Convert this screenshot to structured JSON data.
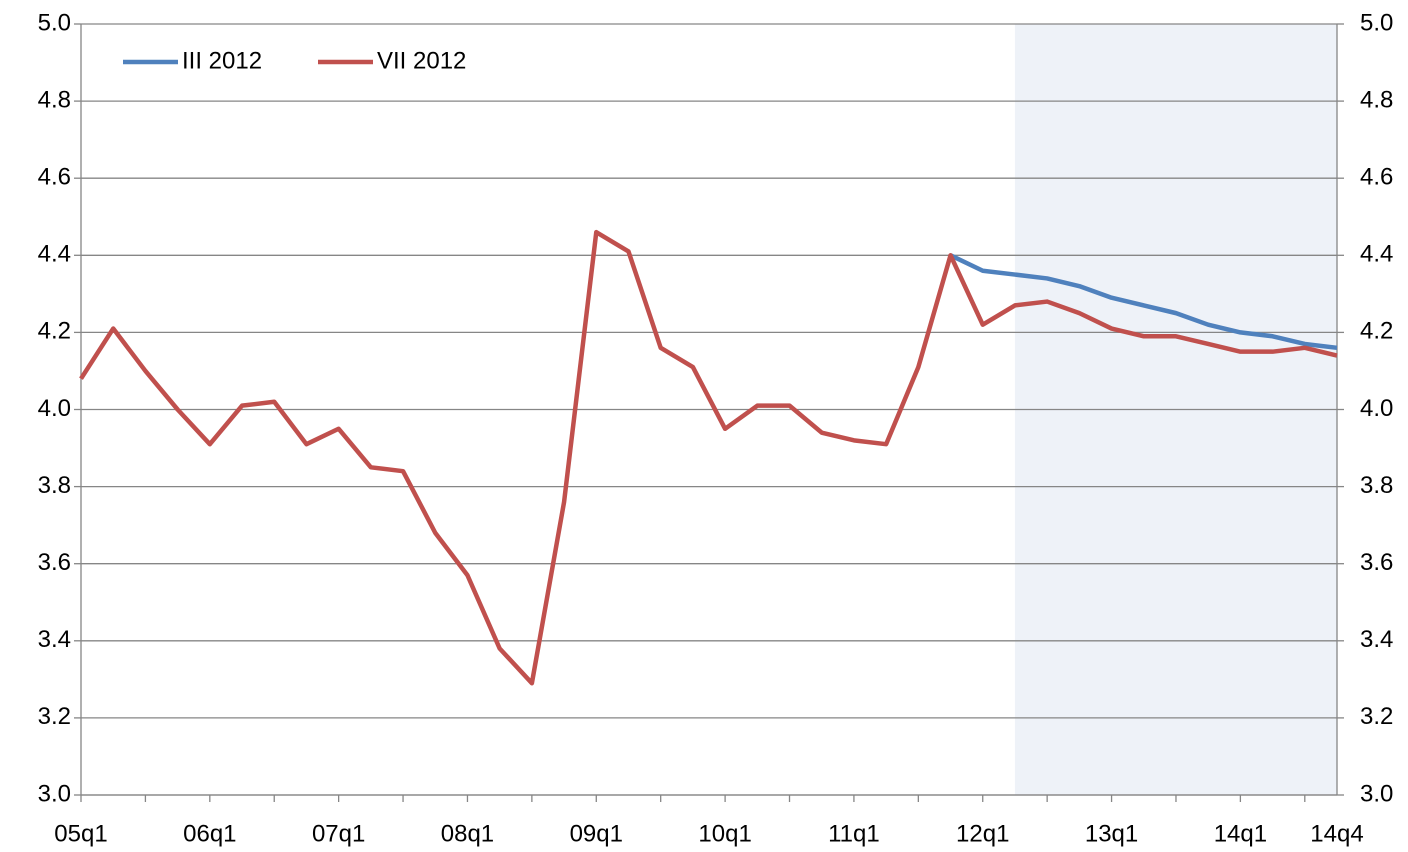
{
  "chart_data": {
    "type": "line",
    "categories": [
      "05q1",
      null,
      null,
      null,
      "06q1",
      null,
      null,
      null,
      "07q1",
      null,
      null,
      null,
      "08q1",
      null,
      null,
      null,
      "09q1",
      null,
      null,
      null,
      "10q1",
      null,
      null,
      null,
      "11q1",
      null,
      null,
      null,
      "12q1",
      null,
      null,
      null,
      "13q1",
      null,
      null,
      null,
      "14q1",
      null,
      null,
      "14q4"
    ],
    "series": [
      {
        "name": "III 2012",
        "color": "#4f81bd",
        "values": [
          null,
          null,
          null,
          null,
          null,
          null,
          null,
          null,
          null,
          null,
          null,
          null,
          null,
          null,
          null,
          null,
          null,
          null,
          null,
          null,
          null,
          null,
          null,
          null,
          null,
          null,
          null,
          4.4,
          4.36,
          4.35,
          4.34,
          4.32,
          4.29,
          4.27,
          4.25,
          4.22,
          4.2,
          4.19,
          4.17,
          4.16
        ]
      },
      {
        "name": "VII 2012",
        "color": "#c0504d",
        "values": [
          4.08,
          4.21,
          4.1,
          4.0,
          3.91,
          4.01,
          4.02,
          3.91,
          3.95,
          3.85,
          3.84,
          3.68,
          3.57,
          3.38,
          3.29,
          3.76,
          4.46,
          4.41,
          4.16,
          4.11,
          3.95,
          4.01,
          4.01,
          3.94,
          3.92,
          3.91,
          4.11,
          4.4,
          4.22,
          4.27,
          4.28,
          4.25,
          4.21,
          4.19,
          4.19,
          4.17,
          4.15,
          4.15,
          4.16,
          4.14
        ]
      }
    ],
    "ylim": [
      3,
      5
    ],
    "yticks": [
      {
        "value": 3,
        "label": "3.0"
      },
      3.2,
      3.4,
      3.6,
      3.8,
      {
        "value": 4,
        "label": "4.0"
      },
      4.2,
      4.4,
      4.6,
      4.8,
      {
        "value": 5,
        "label": "5.0"
      }
    ],
    "y2lim": [
      3,
      5
    ],
    "y2ticks": [
      {
        "value": 3,
        "label": "3.0"
      },
      3.2,
      3.4,
      3.6,
      3.8,
      {
        "value": 4,
        "label": "4.0"
      },
      4.2,
      4.4,
      4.6,
      4.8,
      {
        "value": 5,
        "label": "5.0"
      }
    ],
    "grid": true,
    "legend": "top-left",
    "shade": {
      "from": 29,
      "to": 39,
      "color": "#eef2f8"
    }
  }
}
